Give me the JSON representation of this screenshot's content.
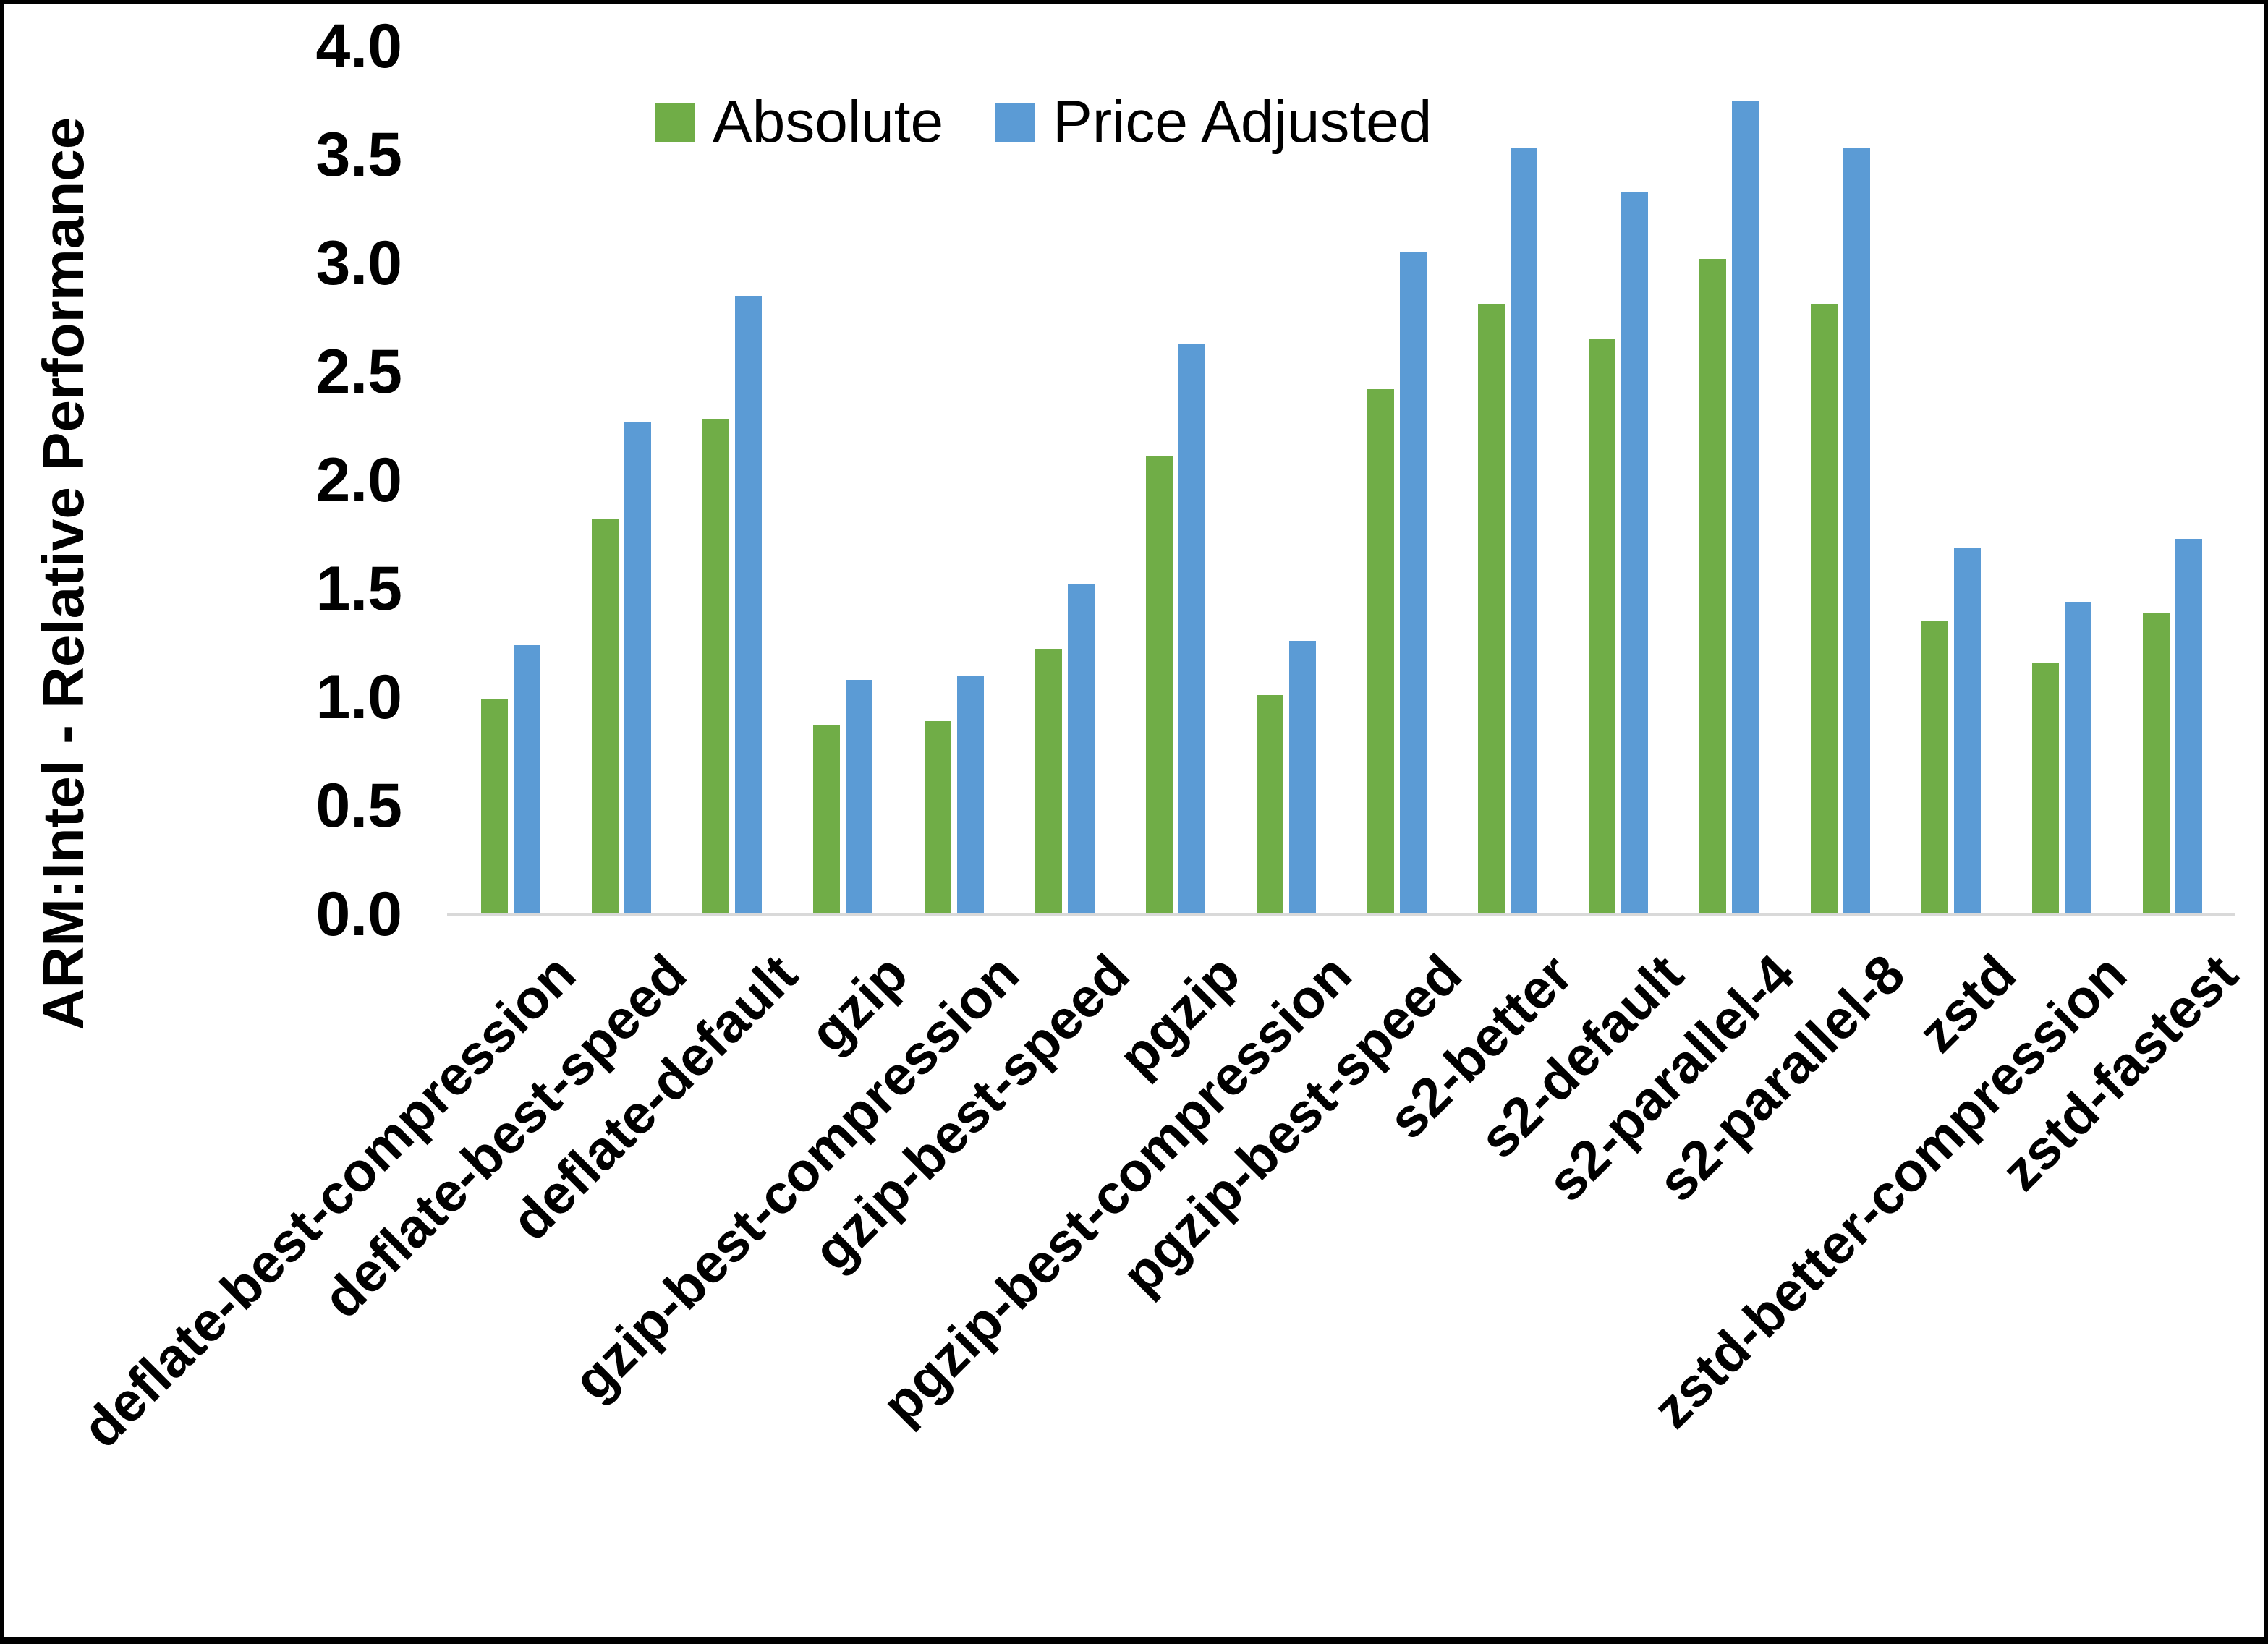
{
  "chart_data": {
    "type": "bar",
    "title": "",
    "ylabel": "ARM:Intel - Relative Performance",
    "xlabel": "",
    "ylim": [
      0.0,
      4.0
    ],
    "ytick_labels": [
      "0.0",
      "0.5",
      "1.0",
      "1.5",
      "2.0",
      "2.5",
      "3.0",
      "3.5",
      "4.0"
    ],
    "grid": false,
    "legend_position": "top-center",
    "categories": [
      "deflate-best-compression",
      "deflate-best-speed",
      "deflate-default",
      "gzip",
      "gzip-best-compression",
      "gzip-best-speed",
      "pgzip",
      "pgzip-best-compression",
      "pgzip-best-speed",
      "s2-better",
      "s2-default",
      "s2-parallel-4",
      "s2-parallel-8",
      "zstd",
      "zstd-better-compression",
      "zstd-fastest"
    ],
    "series": [
      {
        "name": "Absolute",
        "color": "#70AD47",
        "values": [
          0.99,
          1.82,
          2.28,
          0.87,
          0.89,
          1.22,
          2.11,
          1.01,
          2.42,
          2.81,
          2.65,
          3.02,
          2.81,
          1.35,
          1.16,
          1.39
        ]
      },
      {
        "name": "Price Adjusted",
        "color": "#5B9BD5",
        "values": [
          1.24,
          2.27,
          2.85,
          1.08,
          1.1,
          1.52,
          2.63,
          1.26,
          3.05,
          3.53,
          3.33,
          3.75,
          3.53,
          1.69,
          1.44,
          1.73
        ]
      }
    ]
  },
  "colors": {
    "background": "#FFFFFF",
    "frame": "#000000",
    "axis_line": "#D9D9D9",
    "text": "#000000"
  }
}
